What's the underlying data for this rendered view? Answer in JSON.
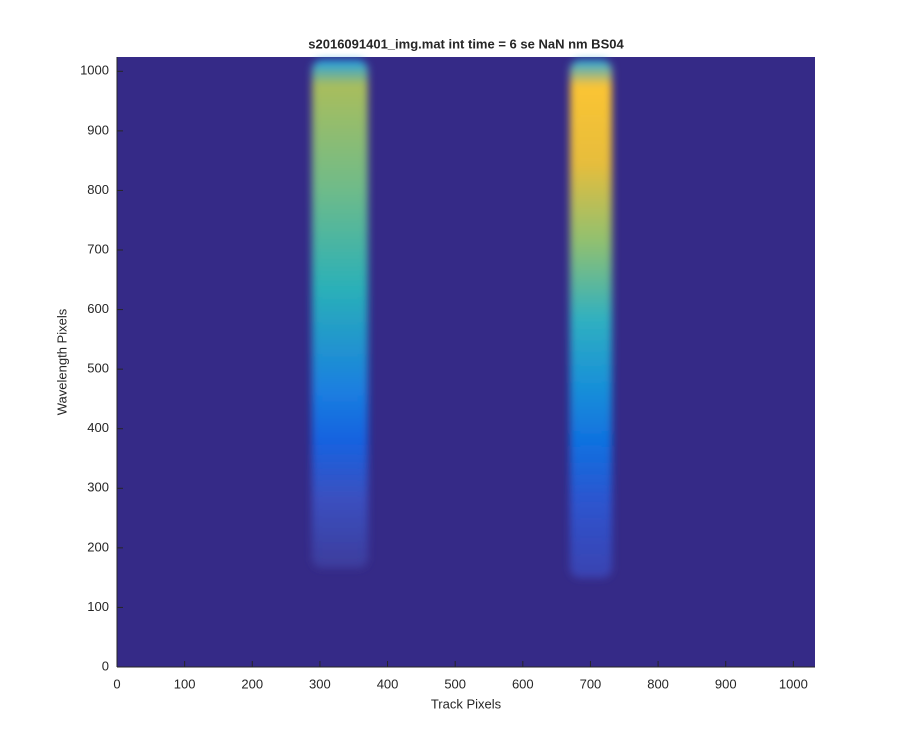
{
  "chart_data": {
    "type": "heatmap",
    "title": "s2016091401_img.mat int time = 6 se  NaN nm BS04",
    "xlabel": "Track Pixels",
    "ylabel": "Wavelength Pixels",
    "xlim": [
      0,
      1032
    ],
    "ylim": [
      0,
      1024
    ],
    "xticks": [
      0,
      100,
      200,
      300,
      400,
      500,
      600,
      700,
      800,
      900,
      1000
    ],
    "yticks": [
      0,
      100,
      200,
      300,
      400,
      500,
      600,
      700,
      800,
      900,
      1000
    ]
  }
}
